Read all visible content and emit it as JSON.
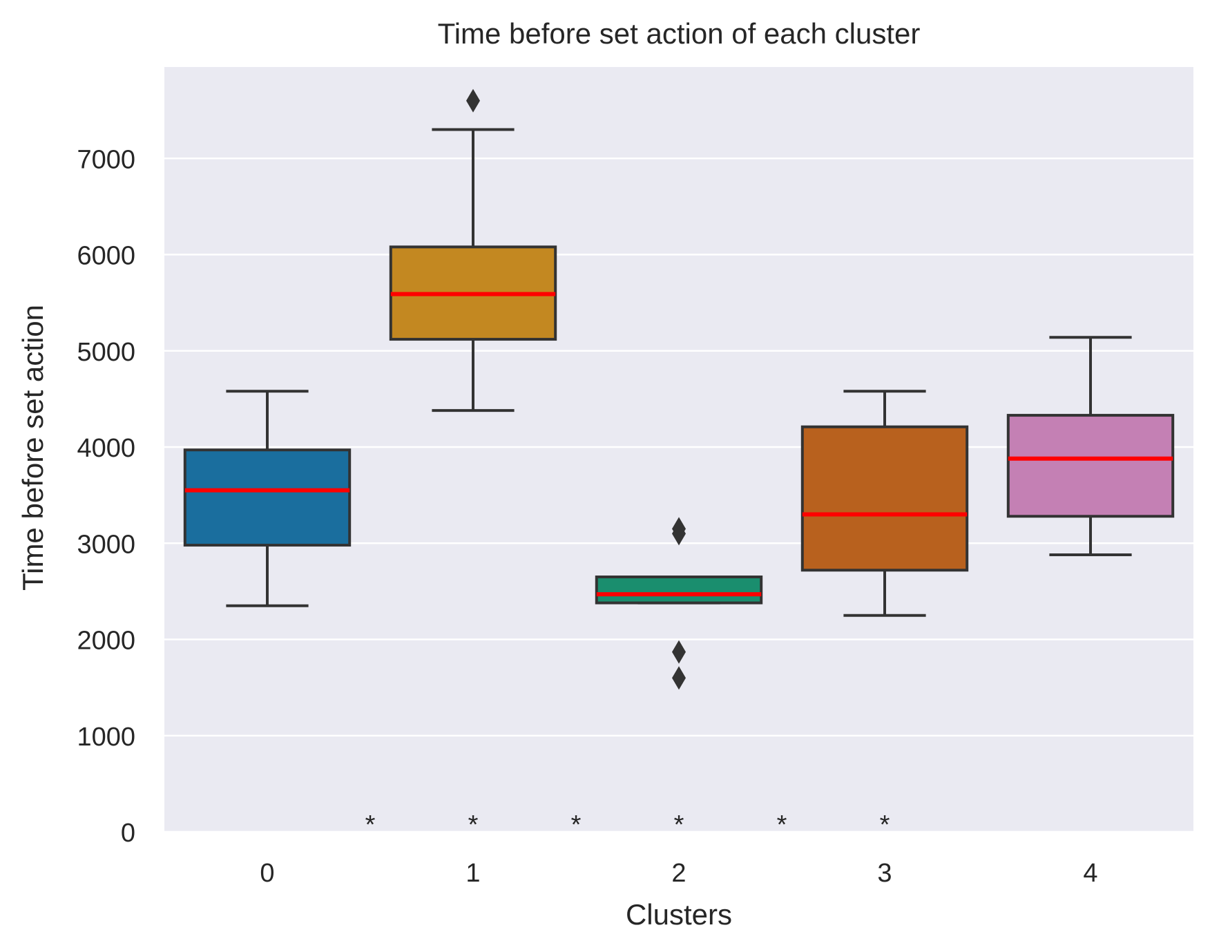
{
  "chart_data": {
    "type": "box",
    "title": "Time before set action of each cluster",
    "xlabel": "Clusters",
    "ylabel": "Time before set action",
    "categories": [
      "0",
      "1",
      "2",
      "3",
      "4"
    ],
    "ylim": [
      0,
      7950
    ],
    "yticks": [
      0,
      1000,
      2000,
      3000,
      4000,
      5000,
      6000,
      7000
    ],
    "grid": true,
    "background": "#eaeaf2",
    "median_color": "#ff0000",
    "box_edge_color": "#333333",
    "boxes": [
      {
        "category": "0",
        "color": "#1a6e9e",
        "whisker_low": 2350,
        "q1": 2980,
        "median": 3550,
        "q3": 3970,
        "whisker_high": 4580,
        "outliers": []
      },
      {
        "category": "1",
        "color": "#c38821",
        "whisker_low": 4380,
        "q1": 5120,
        "median": 5590,
        "q3": 6080,
        "whisker_high": 7300,
        "outliers": [
          7600
        ]
      },
      {
        "category": "2",
        "color": "#1a8e6e",
        "whisker_low": 2380,
        "q1": 2380,
        "median": 2470,
        "q3": 2650,
        "whisker_high": 2650,
        "outliers": [
          3150,
          3100,
          1870,
          1600
        ]
      },
      {
        "category": "3",
        "color": "#b8611e",
        "whisker_low": 2250,
        "q1": 2720,
        "median": 3300,
        "q3": 4210,
        "whisker_high": 4580,
        "outliers": []
      },
      {
        "category": "4",
        "color": "#c480b4",
        "whisker_low": 2880,
        "q1": 3280,
        "median": 3880,
        "q3": 4330,
        "whisker_high": 5140,
        "outliers": []
      }
    ],
    "annotations": [
      {
        "x": 0.5,
        "y": 200,
        "text": "*"
      },
      {
        "x": 1.0,
        "y": 200,
        "text": "*"
      },
      {
        "x": 1.5,
        "y": 200,
        "text": "*"
      },
      {
        "x": 2.0,
        "y": 200,
        "text": "*"
      },
      {
        "x": 2.5,
        "y": 200,
        "text": "*"
      },
      {
        "x": 3.0,
        "y": 200,
        "text": "*"
      }
    ]
  }
}
